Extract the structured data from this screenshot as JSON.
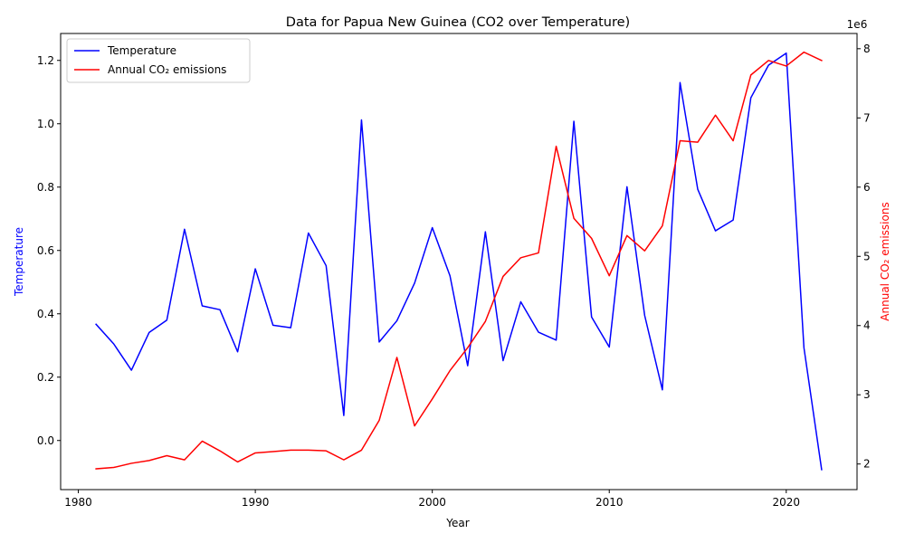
{
  "chart_data": {
    "type": "line",
    "title": "Data for Papua New Guinea (CO2 over Temperature)",
    "xlabel": "Year",
    "ylabel_left": "Temperature",
    "ylabel_right": "Annual CO₂ emissions",
    "right_axis_offset_label": "1e6",
    "xlim": [
      1979,
      2024
    ],
    "ylim_left": [
      -0.155,
      1.285
    ],
    "ylim_right": [
      1.63,
      8.22
    ],
    "x_ticks": [
      1980,
      1990,
      2000,
      2010,
      2020
    ],
    "y_ticks_left": [
      0.0,
      0.2,
      0.4,
      0.6,
      0.8,
      1.0,
      1.2
    ],
    "y_ticks_left_labels": [
      "0.0",
      "0.2",
      "0.4",
      "0.6",
      "0.8",
      "1.0",
      "1.2"
    ],
    "y_ticks_right": [
      2,
      3,
      4,
      5,
      6,
      7,
      8
    ],
    "y_ticks_right_labels": [
      "2",
      "3",
      "4",
      "5",
      "6",
      "7",
      "8"
    ],
    "legend_position": "top-left",
    "grid": false,
    "x": [
      1981,
      1982,
      1983,
      1984,
      1985,
      1986,
      1987,
      1988,
      1989,
      1990,
      1991,
      1992,
      1993,
      1994,
      1995,
      1996,
      1997,
      1998,
      1999,
      2000,
      2001,
      2002,
      2003,
      2004,
      2005,
      2006,
      2007,
      2008,
      2009,
      2010,
      2011,
      2012,
      2013,
      2014,
      2015,
      2016,
      2017,
      2018,
      2019,
      2020,
      2021,
      2022
    ],
    "series": [
      {
        "name": "Temperature",
        "axis": "left",
        "color": "#0000ff",
        "values": [
          0.367,
          0.305,
          0.222,
          0.341,
          0.38,
          0.667,
          0.425,
          0.413,
          0.28,
          0.542,
          0.364,
          0.356,
          0.655,
          0.552,
          0.079,
          1.012,
          0.311,
          0.378,
          0.497,
          0.672,
          0.52,
          0.236,
          0.659,
          0.252,
          0.438,
          0.342,
          0.317,
          1.008,
          0.39,
          0.295,
          0.801,
          0.395,
          0.16,
          1.13,
          0.793,
          0.662,
          0.696,
          1.082,
          1.185,
          1.223,
          0.293,
          -0.092
        ]
      },
      {
        "name": "Annual CO₂ emissions",
        "axis": "right",
        "color": "#ff0000",
        "values": [
          1.93,
          1.95,
          2.01,
          2.05,
          2.12,
          2.06,
          2.33,
          2.19,
          2.03,
          2.16,
          2.18,
          2.2,
          2.2,
          2.19,
          2.06,
          2.2,
          2.63,
          3.54,
          2.55,
          2.94,
          3.35,
          3.68,
          4.06,
          4.71,
          4.98,
          5.05,
          6.59,
          5.55,
          5.26,
          4.72,
          5.3,
          5.08,
          5.44,
          6.67,
          6.65,
          7.04,
          6.67,
          7.62,
          7.83,
          7.75,
          7.95,
          7.83
        ]
      }
    ]
  }
}
